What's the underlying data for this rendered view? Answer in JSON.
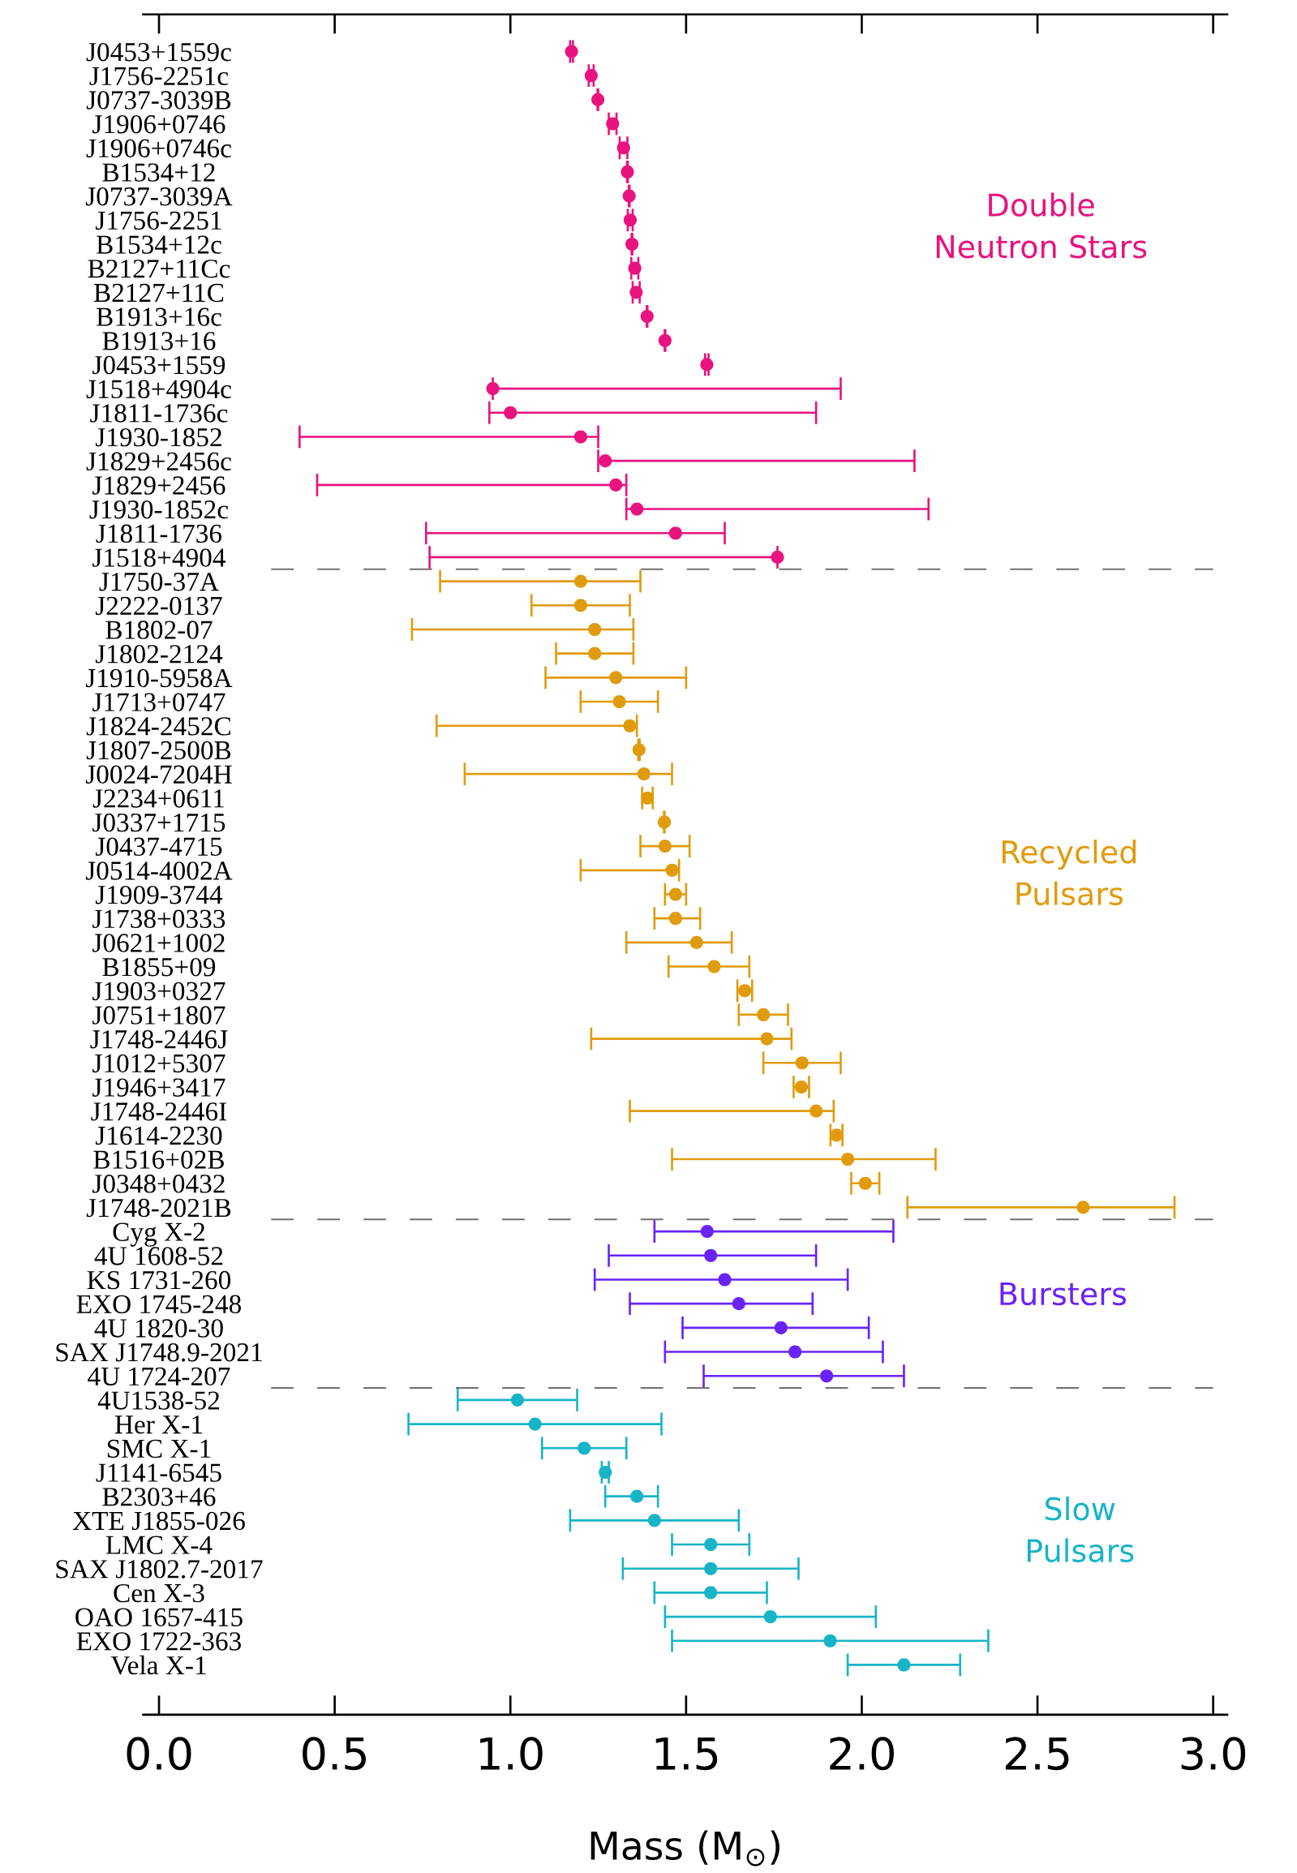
{
  "chart_data": {
    "type": "scatter",
    "orientation": "horizontal",
    "marker": "circle",
    "categories": [
      "J0453+1559c",
      "J1756-2251c",
      "J0737-3039B",
      "J1906+0746",
      "J1906+0746c",
      "B1534+12",
      "J0737-3039A",
      "J1756-2251",
      "B1534+12c",
      "B2127+11Cc",
      "B2127+11C",
      "B1913+16c",
      "B1913+16",
      "J0453+1559",
      "J1518+4904c",
      "J1811-1736c",
      "J1930-1852",
      "J1829+2456c",
      "J1829+2456",
      "J1930-1852c",
      "J1811-1736",
      "J1518+4904",
      "J1750-37A",
      "J2222-0137",
      "B1802-07",
      "J1802-2124",
      "J1910-5958A",
      "J1713+0747",
      "J1824-2452C",
      "J1807-2500B",
      "J0024-7204H",
      "J2234+0611",
      "J0337+1715",
      "J0437-4715",
      "J0514-4002A",
      "J1909-3744",
      "J1738+0333",
      "J0621+1002",
      "B1855+09",
      "J1903+0327",
      "J0751+1807",
      "J1748-2446J",
      "J1012+5307",
      "J1946+3417",
      "J1748-2446I",
      "J1614-2230",
      "B1516+02B",
      "J0348+0432",
      "J1748-2021B",
      "Cyg X-2",
      "4U 1608-52",
      "KS 1731-260",
      "EXO 1745-248",
      "4U 1820-30",
      "SAX J1748.9-2021",
      "4U 1724-207",
      "4U1538-52",
      "Her X-1",
      "SMC X-1",
      "J1141-6545",
      "B2303+46",
      "XTE J1855-026",
      "LMC X-4",
      "SAX J1802.7-2017",
      "Cen X-3",
      "OAO 1657-415",
      "EXO 1722-363",
      "Vela X-1"
    ],
    "series": [
      {
        "name": "Double\nNeutron Stars",
        "color": "#e8137f",
        "values": [
          1.174,
          1.23,
          1.249,
          1.291,
          1.322,
          1.333,
          1.338,
          1.341,
          1.346,
          1.354,
          1.358,
          1.389,
          1.44,
          1.559,
          0.95,
          1.0,
          1.2,
          1.27,
          1.3,
          1.36,
          1.47,
          1.76,
          null,
          null,
          null,
          null,
          null,
          null,
          null,
          null,
          null,
          null,
          null,
          null,
          null,
          null,
          null,
          null,
          null,
          null,
          null,
          null,
          null,
          null,
          null,
          null,
          null,
          null,
          null,
          null,
          null,
          null,
          null,
          null,
          null,
          null,
          null,
          null,
          null,
          null,
          null,
          null,
          null,
          null,
          null,
          null,
          null,
          null
        ],
        "errors": [
          0.004,
          0.007,
          0.001,
          0.011,
          0.011,
          0.001,
          0.001,
          0.007,
          0.001,
          0.01,
          0.01,
          0.001,
          0.001,
          0.005,
          [
            0.95,
            1.94
          ],
          [
            0.94,
            1.87
          ],
          [
            0.4,
            1.25
          ],
          [
            1.25,
            2.15
          ],
          [
            0.45,
            1.33
          ],
          [
            1.33,
            2.19
          ],
          [
            0.76,
            1.61
          ],
          [
            0.77,
            1.76
          ],
          null,
          null,
          null,
          null,
          null,
          null,
          null,
          null,
          null,
          null,
          null,
          null,
          null,
          null,
          null,
          null,
          null,
          null,
          null,
          null,
          null,
          null,
          null,
          null,
          null,
          null,
          null,
          null,
          null,
          null,
          null,
          null,
          null,
          null,
          null,
          null,
          null,
          null,
          null,
          null,
          null,
          null,
          null,
          null,
          null,
          null
        ]
      },
      {
        "name": "Recycled\nPulsars",
        "color": "#e09b0c",
        "values": [
          null,
          null,
          null,
          null,
          null,
          null,
          null,
          null,
          null,
          null,
          null,
          null,
          null,
          null,
          null,
          null,
          null,
          null,
          null,
          null,
          null,
          null,
          1.2,
          1.2,
          1.24,
          1.24,
          1.3,
          1.31,
          1.34,
          1.366,
          1.38,
          1.39,
          1.438,
          1.44,
          1.46,
          1.47,
          1.47,
          1.53,
          1.58,
          1.667,
          1.72,
          1.73,
          1.83,
          1.828,
          1.87,
          1.928,
          1.96,
          2.01,
          2.63,
          null,
          null,
          null,
          null,
          null,
          null,
          null,
          null,
          null,
          null,
          null,
          null,
          null,
          null,
          null,
          null,
          null,
          null,
          null
        ],
        "errors": [
          null,
          null,
          null,
          null,
          null,
          null,
          null,
          null,
          null,
          null,
          null,
          null,
          null,
          null,
          null,
          null,
          null,
          null,
          null,
          null,
          null,
          null,
          [
            0.8,
            1.37
          ],
          [
            1.06,
            1.34
          ],
          [
            0.72,
            1.35
          ],
          [
            1.13,
            1.35
          ],
          [
            1.1,
            1.5
          ],
          [
            1.2,
            1.42
          ],
          [
            0.79,
            1.36
          ],
          0.002,
          [
            0.87,
            1.46
          ],
          0.015,
          0.001,
          0.07,
          [
            1.2,
            1.48
          ],
          0.03,
          [
            1.41,
            1.54
          ],
          [
            1.33,
            1.63
          ],
          [
            1.45,
            1.68
          ],
          0.021,
          0.07,
          [
            1.23,
            1.8
          ],
          0.11,
          0.022,
          [
            1.34,
            1.92
          ],
          0.017,
          [
            1.46,
            2.21
          ],
          0.04,
          [
            2.13,
            2.89
          ],
          null,
          null,
          null,
          null,
          null,
          null,
          null,
          null,
          null,
          null,
          null,
          null,
          null,
          null,
          null,
          null,
          null,
          null,
          null
        ]
      },
      {
        "name": "Bursters",
        "color": "#6a23f6",
        "values": [
          null,
          null,
          null,
          null,
          null,
          null,
          null,
          null,
          null,
          null,
          null,
          null,
          null,
          null,
          null,
          null,
          null,
          null,
          null,
          null,
          null,
          null,
          null,
          null,
          null,
          null,
          null,
          null,
          null,
          null,
          null,
          null,
          null,
          null,
          null,
          null,
          null,
          null,
          null,
          null,
          null,
          null,
          null,
          null,
          null,
          null,
          null,
          null,
          null,
          1.56,
          1.57,
          1.61,
          1.65,
          1.77,
          1.81,
          1.9,
          null,
          null,
          null,
          null,
          null,
          null,
          null,
          null,
          null,
          null,
          null,
          null
        ],
        "errors": [
          null,
          null,
          null,
          null,
          null,
          null,
          null,
          null,
          null,
          null,
          null,
          null,
          null,
          null,
          null,
          null,
          null,
          null,
          null,
          null,
          null,
          null,
          null,
          null,
          null,
          null,
          null,
          null,
          null,
          null,
          null,
          null,
          null,
          null,
          null,
          null,
          null,
          null,
          null,
          null,
          null,
          null,
          null,
          null,
          null,
          null,
          null,
          null,
          null,
          [
            1.41,
            2.09
          ],
          [
            1.28,
            1.87
          ],
          [
            1.24,
            1.96
          ],
          [
            1.34,
            1.86
          ],
          [
            1.49,
            2.02
          ],
          [
            1.44,
            2.06
          ],
          [
            1.55,
            2.12
          ],
          null,
          null,
          null,
          null,
          null,
          null,
          null,
          null,
          null,
          null,
          null,
          null
        ]
      },
      {
        "name": "Slow\nPulsars",
        "color": "#17b4c8",
        "values": [
          null,
          null,
          null,
          null,
          null,
          null,
          null,
          null,
          null,
          null,
          null,
          null,
          null,
          null,
          null,
          null,
          null,
          null,
          null,
          null,
          null,
          null,
          null,
          null,
          null,
          null,
          null,
          null,
          null,
          null,
          null,
          null,
          null,
          null,
          null,
          null,
          null,
          null,
          null,
          null,
          null,
          null,
          null,
          null,
          null,
          null,
          null,
          null,
          null,
          null,
          null,
          null,
          null,
          null,
          null,
          null,
          1.02,
          1.07,
          1.21,
          1.27,
          1.36,
          1.41,
          1.57,
          1.57,
          1.57,
          1.74,
          1.91,
          2.12
        ],
        "errors": [
          null,
          null,
          null,
          null,
          null,
          null,
          null,
          null,
          null,
          null,
          null,
          null,
          null,
          null,
          null,
          null,
          null,
          null,
          null,
          null,
          null,
          null,
          null,
          null,
          null,
          null,
          null,
          null,
          null,
          null,
          null,
          null,
          null,
          null,
          null,
          null,
          null,
          null,
          null,
          null,
          null,
          null,
          null,
          null,
          null,
          null,
          null,
          null,
          null,
          null,
          null,
          null,
          null,
          null,
          null,
          null,
          0.17,
          0.36,
          0.12,
          0.01,
          [
            1.27,
            1.42
          ],
          0.24,
          0.11,
          0.25,
          0.16,
          0.3,
          0.45,
          0.16
        ]
      }
    ],
    "xlim": [
      -0.045,
      3.04
    ],
    "xticks": [
      {
        "value": 0,
        "label": "0.0"
      },
      0.5,
      {
        "value": 1,
        "label": "1.0"
      },
      1.5,
      {
        "value": 2,
        "label": "2.0"
      },
      2.5,
      {
        "value": 3,
        "label": "3.0"
      }
    ],
    "xlabel": "Mass (M$_{⊙}$)"
  }
}
